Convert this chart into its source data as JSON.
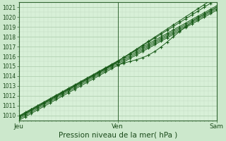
{
  "xlabel": "Pression niveau de la mer( hPa )",
  "bg_color": "#cce8cc",
  "plot_bg_color": "#d8f0d8",
  "grid_color_major": "#aaccaa",
  "grid_color_minor": "#c0dcc0",
  "line_color_dark": "#1a5c1a",
  "line_color_mid": "#2a7a2a",
  "axis_color": "#336633",
  "tick_label_color": "#1a4a1a",
  "xlabel_color": "#1a4a1a",
  "xlim": [
    0,
    48
  ],
  "ylim": [
    1009.5,
    1021.5
  ],
  "yticks": [
    1010,
    1011,
    1012,
    1013,
    1014,
    1015,
    1016,
    1017,
    1018,
    1019,
    1020,
    1021
  ],
  "xtick_positions": [
    0,
    24,
    48
  ],
  "xtick_labels": [
    "Jeu",
    "Ven",
    "Sam"
  ],
  "figsize": [
    3.2,
    2.0
  ],
  "dpi": 100
}
